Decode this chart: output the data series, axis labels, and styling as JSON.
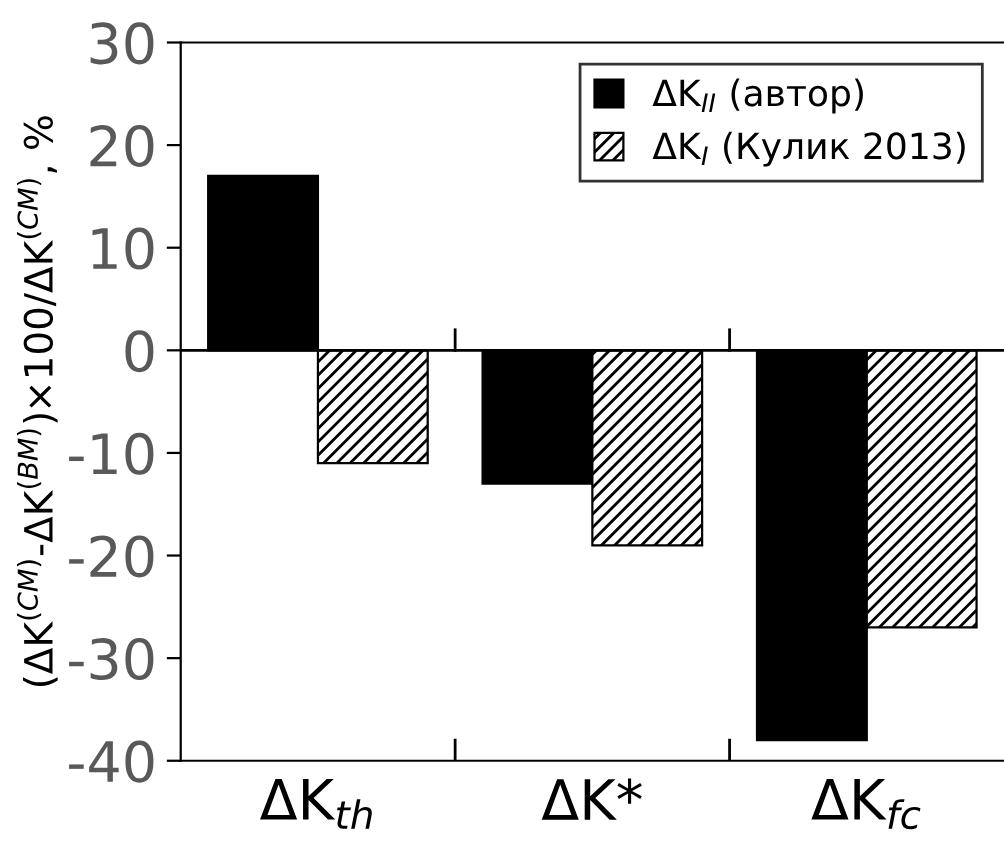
{
  "chart_data": {
    "type": "bar",
    "ylabel": "(ΔK$^{(CM)}$-ΔK$^{(BM)}$)×100/ΔK$^{(CM)}$, %",
    "categories": [
      "ΔK$_{th}$",
      "ΔK*",
      "ΔK$_{fc}$"
    ],
    "series": [
      {
        "name": "ΔK$_{II}$ (автор)",
        "color": "#000000",
        "values": [
          17,
          -13,
          -38
        ]
      },
      {
        "name": "ΔK$_{I}$ (Кулик 2013)",
        "color": "#000000",
        "values": [
          -11,
          -19,
          -27
        ]
      }
    ],
    "ylim": [
      -40,
      30
    ],
    "yticks": [
      -40,
      -30,
      -20,
      -10,
      0,
      10,
      20,
      30
    ],
    "legend": "top right"
  }
}
